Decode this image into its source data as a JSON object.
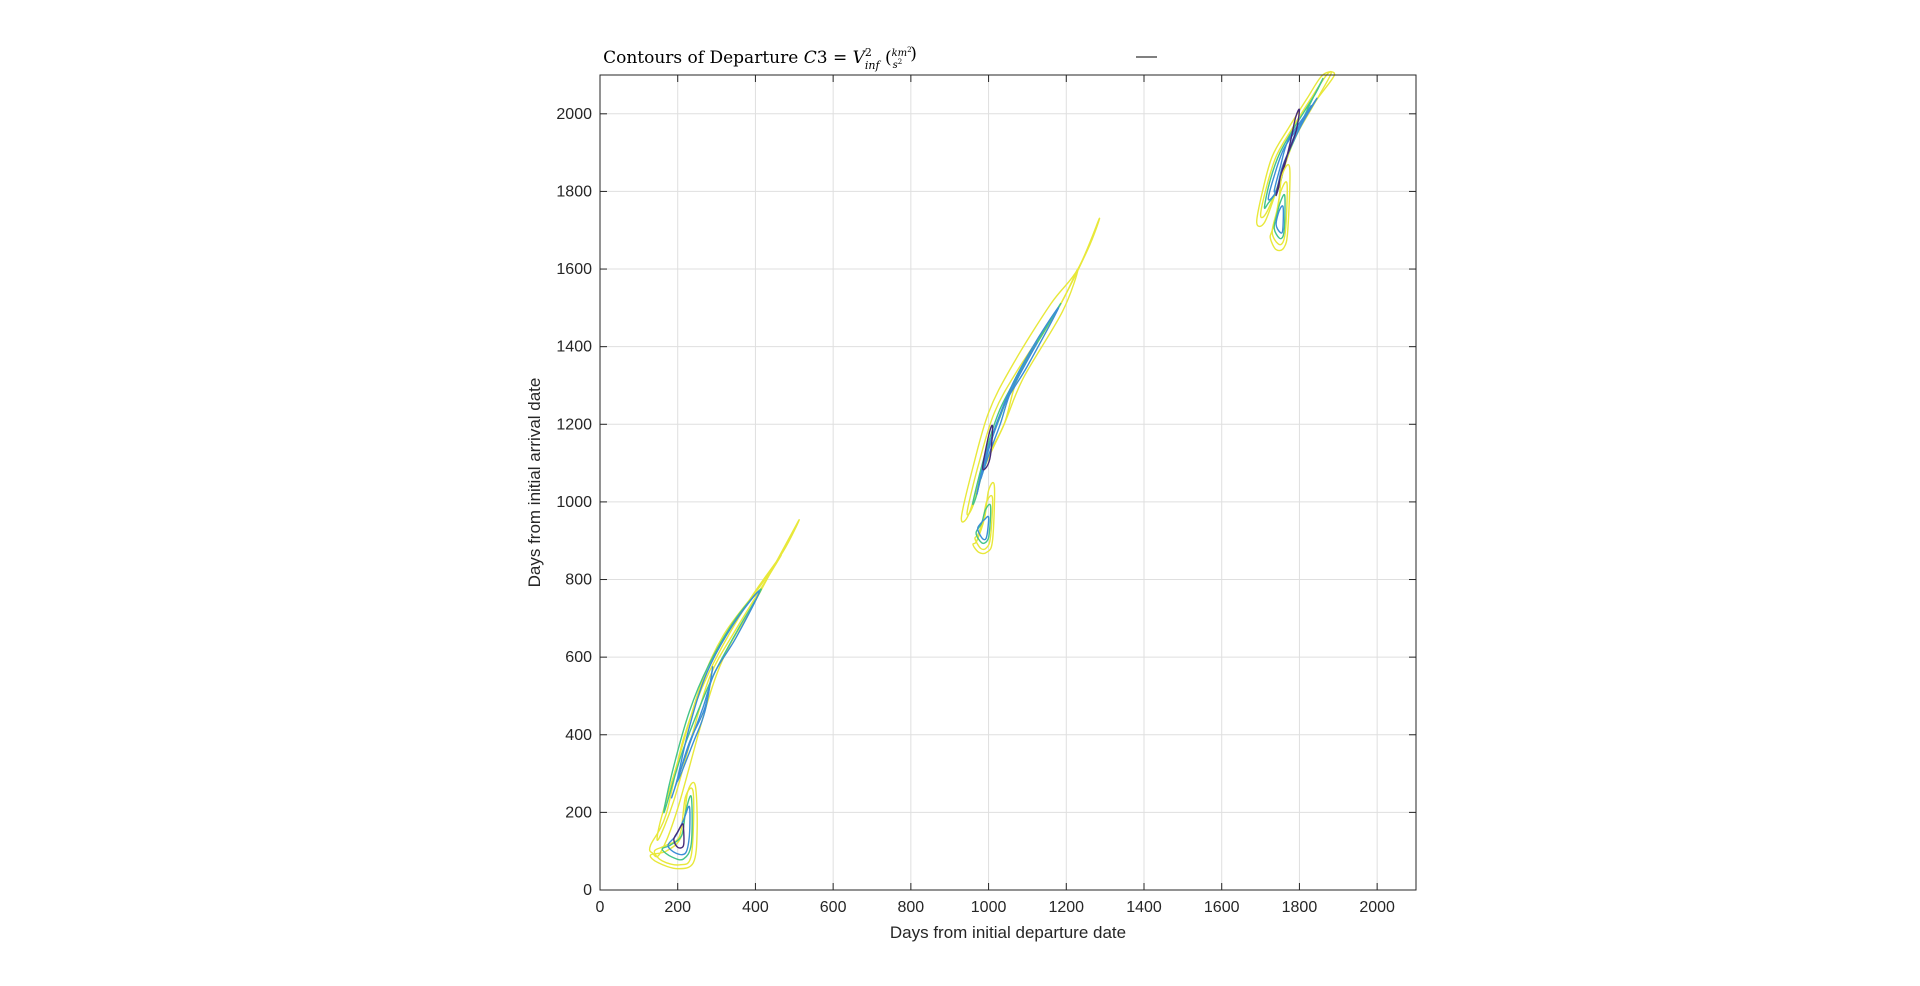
{
  "chart_data": {
    "type": "contour",
    "title": {
      "prefix": "Contours of Departure ",
      "var": "C",
      "num": "3",
      "eq": " = ",
      "v": "V",
      "sup": "2",
      "sub": "inf",
      "frac_num": "km",
      "frac_num_sup": "2",
      "frac_den": "s",
      "frac_den_sup": "2"
    },
    "xlabel": "Days from initial departure date",
    "ylabel": "Days from initial arrival date",
    "xlim": [
      0,
      2100
    ],
    "ylim": [
      0,
      2100
    ],
    "xticks": [
      0,
      200,
      400,
      600,
      800,
      1000,
      1200,
      1400,
      1600,
      1800,
      2000
    ],
    "yticks": [
      0,
      200,
      400,
      600,
      800,
      1000,
      1200,
      1400,
      1600,
      1800,
      2000
    ],
    "grid": true,
    "colors": {
      "yellow": "#e8e83a",
      "green": "#44c48a",
      "blue": "#3b8ed6",
      "purple": "#462a79"
    },
    "contours": [
      {
        "group": "region-1-main",
        "color": "yellow",
        "points": [
          [
            135,
            95
          ],
          [
            155,
            95
          ],
          [
            200,
            210
          ],
          [
            300,
            555
          ],
          [
            400,
            745
          ],
          [
            510,
            950
          ],
          [
            470,
            870
          ],
          [
            380,
            740
          ],
          [
            280,
            560
          ],
          [
            215,
            390
          ],
          [
            170,
            195
          ],
          [
            130,
            115
          ]
        ]
      },
      {
        "group": "region-1-main",
        "color": "yellow",
        "points": [
          [
            150,
            130
          ],
          [
            190,
            230
          ],
          [
            240,
            410
          ],
          [
            285,
            555
          ],
          [
            355,
            680
          ],
          [
            465,
            860
          ],
          [
            410,
            780
          ],
          [
            320,
            660
          ],
          [
            260,
            530
          ],
          [
            200,
            330
          ],
          [
            155,
            175
          ]
        ]
      },
      {
        "group": "region-1-main",
        "color": "green",
        "points": [
          [
            165,
            200
          ],
          [
            210,
            350
          ],
          [
            260,
            480
          ],
          [
            300,
            570
          ],
          [
            360,
            680
          ],
          [
            415,
            775
          ],
          [
            350,
            700
          ],
          [
            280,
            580
          ],
          [
            230,
            460
          ],
          [
            185,
            300
          ]
        ]
      },
      {
        "group": "region-1-main",
        "color": "blue",
        "points": [
          [
            185,
            240
          ],
          [
            225,
            360
          ],
          [
            265,
            470
          ],
          [
            295,
            560
          ],
          [
            350,
            650
          ],
          [
            410,
            770
          ],
          [
            340,
            680
          ],
          [
            275,
            560
          ],
          [
            230,
            420
          ],
          [
            200,
            290
          ]
        ]
      },
      {
        "group": "region-1-main",
        "color": "blue",
        "points": [
          [
            200,
            280
          ],
          [
            240,
            380
          ],
          [
            270,
            460
          ],
          [
            290,
            575
          ],
          [
            270,
            470
          ],
          [
            230,
            380
          ]
        ]
      },
      {
        "group": "region-1-lobe",
        "color": "yellow",
        "points": [
          [
            130,
            90
          ],
          [
            150,
            70
          ],
          [
            200,
            55
          ],
          [
            240,
            70
          ],
          [
            250,
            150
          ],
          [
            245,
            270
          ],
          [
            225,
            250
          ],
          [
            210,
            140
          ],
          [
            170,
            100
          ]
        ]
      },
      {
        "group": "region-1-lobe",
        "color": "yellow",
        "points": [
          [
            140,
            100
          ],
          [
            160,
            75
          ],
          [
            205,
            65
          ],
          [
            235,
            90
          ],
          [
            240,
            250
          ],
          [
            220,
            240
          ],
          [
            205,
            140
          ],
          [
            170,
            115
          ]
        ]
      },
      {
        "group": "region-1-lobe",
        "color": "green",
        "points": [
          [
            160,
            105
          ],
          [
            185,
            85
          ],
          [
            215,
            80
          ],
          [
            235,
            120
          ],
          [
            235,
            240
          ],
          [
            220,
            200
          ],
          [
            210,
            140
          ],
          [
            180,
            115
          ]
        ]
      },
      {
        "group": "region-1-lobe",
        "color": "blue",
        "points": [
          [
            175,
            115
          ],
          [
            195,
            95
          ],
          [
            220,
            95
          ],
          [
            230,
            140
          ],
          [
            230,
            215
          ],
          [
            215,
            180
          ],
          [
            195,
            140
          ]
        ]
      },
      {
        "group": "region-1-lobe",
        "color": "purple",
        "points": [
          [
            190,
            130
          ],
          [
            200,
            110
          ],
          [
            215,
            115
          ],
          [
            215,
            160
          ],
          [
            212,
            170
          ],
          [
            200,
            150
          ]
        ]
      },
      {
        "group": "region-2-main",
        "color": "yellow",
        "points": [
          [
            930,
            960
          ],
          [
            960,
            1090
          ],
          [
            1000,
            1230
          ],
          [
            1060,
            1350
          ],
          [
            1160,
            1510
          ],
          [
            1230,
            1600
          ],
          [
            1285,
            1730
          ],
          [
            1255,
            1650
          ],
          [
            1180,
            1500
          ],
          [
            1080,
            1330
          ],
          [
            1040,
            1200
          ],
          [
            990,
            1100
          ],
          [
            950,
            970
          ]
        ]
      },
      {
        "group": "region-2-main",
        "color": "yellow",
        "points": [
          [
            945,
            975
          ],
          [
            975,
            1100
          ],
          [
            1015,
            1230
          ],
          [
            1075,
            1340
          ],
          [
            1180,
            1500
          ],
          [
            1230,
            1600
          ],
          [
            1190,
            1490
          ],
          [
            1090,
            1320
          ],
          [
            1040,
            1200
          ],
          [
            990,
            1090
          ],
          [
            960,
            990
          ]
        ]
      },
      {
        "group": "region-2-main",
        "color": "green",
        "points": [
          [
            960,
            1000
          ],
          [
            990,
            1120
          ],
          [
            1030,
            1240
          ],
          [
            1090,
            1350
          ],
          [
            1185,
            1510
          ],
          [
            1130,
            1420
          ],
          [
            1070,
            1320
          ],
          [
            1030,
            1220
          ],
          [
            990,
            1110
          ],
          [
            970,
            1020
          ]
        ]
      },
      {
        "group": "region-2-main",
        "color": "blue",
        "points": [
          [
            970,
            1020
          ],
          [
            1000,
            1140
          ],
          [
            1040,
            1250
          ],
          [
            1100,
            1350
          ],
          [
            1180,
            1500
          ],
          [
            1120,
            1410
          ],
          [
            1060,
            1300
          ],
          [
            1020,
            1200
          ],
          [
            990,
            1110
          ]
        ]
      },
      {
        "group": "region-2-main",
        "color": "blue",
        "points": [
          [
            980,
            1060
          ],
          [
            1005,
            1150
          ],
          [
            1045,
            1260
          ],
          [
            1125,
            1410
          ],
          [
            1060,
            1290
          ],
          [
            1030,
            1200
          ],
          [
            1000,
            1120
          ]
        ]
      },
      {
        "group": "region-2-main",
        "color": "purple",
        "points": [
          [
            985,
            1090
          ],
          [
            1000,
            1170
          ],
          [
            1010,
            1195
          ],
          [
            1005,
            1120
          ],
          [
            995,
            1090
          ]
        ]
      },
      {
        "group": "region-2-lobe",
        "color": "yellow",
        "points": [
          [
            960,
            890
          ],
          [
            975,
            870
          ],
          [
            995,
            870
          ],
          [
            1010,
            900
          ],
          [
            1015,
            1040
          ],
          [
            1000,
            1030
          ],
          [
            990,
            960
          ],
          [
            970,
            900
          ]
        ]
      },
      {
        "group": "region-2-lobe",
        "color": "yellow",
        "points": [
          [
            965,
            905
          ],
          [
            980,
            880
          ],
          [
            995,
            882
          ],
          [
            1005,
            910
          ],
          [
            1010,
            1010
          ],
          [
            995,
            1000
          ],
          [
            985,
            950
          ],
          [
            972,
            915
          ]
        ]
      },
      {
        "group": "region-2-lobe",
        "color": "green",
        "points": [
          [
            968,
            920
          ],
          [
            982,
            895
          ],
          [
            995,
            898
          ],
          [
            1002,
            920
          ],
          [
            1005,
            990
          ],
          [
            992,
            980
          ],
          [
            982,
            945
          ]
        ]
      },
      {
        "group": "region-2-lobe",
        "color": "blue",
        "points": [
          [
            972,
            930
          ],
          [
            985,
            905
          ],
          [
            995,
            910
          ],
          [
            1000,
            960
          ],
          [
            990,
            955
          ],
          [
            980,
            945
          ]
        ]
      },
      {
        "group": "region-3-main",
        "color": "yellow",
        "points": [
          [
            1690,
            1720
          ],
          [
            1705,
            1800
          ],
          [
            1730,
            1890
          ],
          [
            1770,
            1960
          ],
          [
            1820,
            2040
          ],
          [
            1860,
            2100
          ],
          [
            1890,
            2100
          ],
          [
            1840,
            2030
          ],
          [
            1800,
            1960
          ],
          [
            1760,
            1870
          ],
          [
            1740,
            1800
          ],
          [
            1710,
            1720
          ]
        ]
      },
      {
        "group": "region-3-main",
        "color": "yellow",
        "points": [
          [
            1700,
            1740
          ],
          [
            1715,
            1810
          ],
          [
            1740,
            1890
          ],
          [
            1780,
            1960
          ],
          [
            1830,
            2040
          ],
          [
            1870,
            2100
          ],
          [
            1880,
            2100
          ],
          [
            1835,
            2020
          ],
          [
            1790,
            1940
          ],
          [
            1760,
            1860
          ],
          [
            1735,
            1790
          ],
          [
            1712,
            1740
          ]
        ]
      },
      {
        "group": "region-3-main",
        "color": "green",
        "points": [
          [
            1710,
            1760
          ],
          [
            1725,
            1830
          ],
          [
            1750,
            1900
          ],
          [
            1790,
            1970
          ],
          [
            1840,
            2050
          ],
          [
            1860,
            2090
          ],
          [
            1820,
            2010
          ],
          [
            1790,
            1940
          ],
          [
            1760,
            1870
          ],
          [
            1740,
            1800
          ],
          [
            1720,
            1770
          ]
        ]
      },
      {
        "group": "region-3-main",
        "color": "blue",
        "points": [
          [
            1720,
            1780
          ],
          [
            1735,
            1840
          ],
          [
            1760,
            1910
          ],
          [
            1800,
            1970
          ],
          [
            1845,
            2040
          ],
          [
            1810,
            1980
          ],
          [
            1780,
            1920
          ],
          [
            1755,
            1860
          ],
          [
            1740,
            1800
          ]
        ]
      },
      {
        "group": "region-3-main",
        "color": "blue",
        "points": [
          [
            1735,
            1800
          ],
          [
            1750,
            1860
          ],
          [
            1770,
            1930
          ],
          [
            1810,
            1990
          ],
          [
            1830,
            2020
          ],
          [
            1790,
            1950
          ],
          [
            1765,
            1880
          ],
          [
            1750,
            1820
          ]
        ]
      },
      {
        "group": "region-3-main",
        "color": "purple",
        "points": [
          [
            1740,
            1790
          ],
          [
            1760,
            1870
          ],
          [
            1790,
            1950
          ],
          [
            1800,
            2010
          ],
          [
            1790,
            1990
          ],
          [
            1775,
            1920
          ],
          [
            1755,
            1840
          ]
        ]
      },
      {
        "group": "region-3-lobe",
        "color": "yellow",
        "points": [
          [
            1725,
            1680
          ],
          [
            1740,
            1650
          ],
          [
            1760,
            1655
          ],
          [
            1770,
            1700
          ],
          [
            1775,
            1860
          ],
          [
            1755,
            1840
          ],
          [
            1745,
            1760
          ],
          [
            1730,
            1700
          ]
        ]
      },
      {
        "group": "region-3-lobe",
        "color": "yellow",
        "points": [
          [
            1730,
            1695
          ],
          [
            1745,
            1665
          ],
          [
            1758,
            1670
          ],
          [
            1765,
            1710
          ],
          [
            1768,
            1820
          ],
          [
            1752,
            1800
          ],
          [
            1742,
            1750
          ]
        ]
      },
      {
        "group": "region-3-lobe",
        "color": "green",
        "points": [
          [
            1735,
            1705
          ],
          [
            1748,
            1680
          ],
          [
            1758,
            1685
          ],
          [
            1762,
            1720
          ],
          [
            1762,
            1790
          ],
          [
            1750,
            1770
          ],
          [
            1742,
            1740
          ]
        ]
      },
      {
        "group": "region-3-lobe",
        "color": "blue",
        "points": [
          [
            1740,
            1715
          ],
          [
            1750,
            1695
          ],
          [
            1757,
            1700
          ],
          [
            1758,
            1760
          ],
          [
            1748,
            1750
          ]
        ]
      }
    ]
  }
}
